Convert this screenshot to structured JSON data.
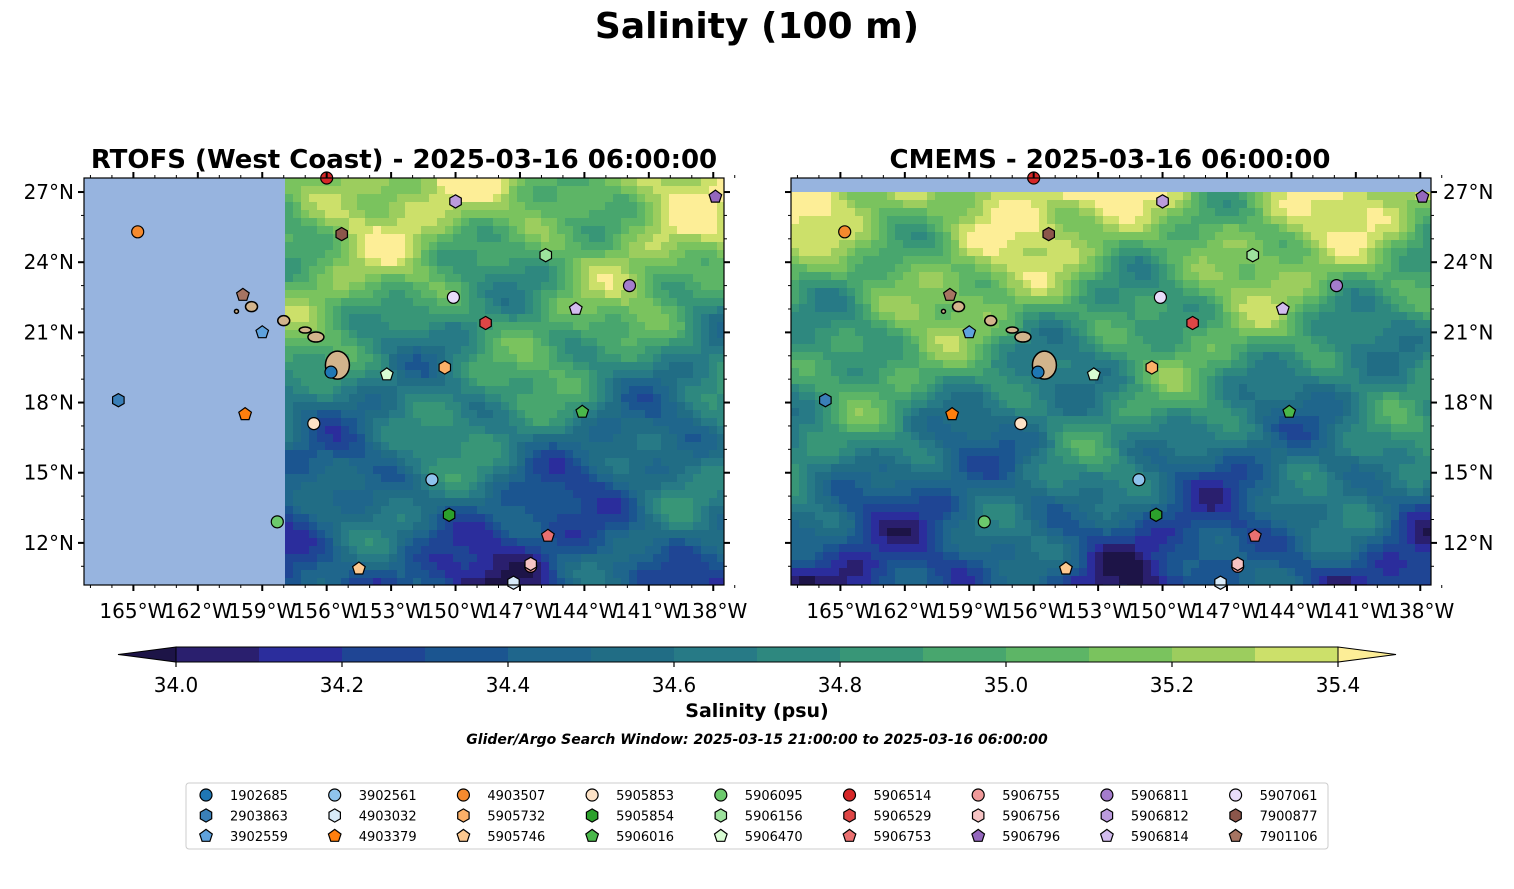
{
  "title": "Salinity (100 m)",
  "panels": [
    {
      "title": "RTOFS (West Coast) - 2025-03-16 06:00:00",
      "side": "left"
    },
    {
      "title": "CMEMS - 2025-03-16 06:00:00",
      "side": "right"
    }
  ],
  "colorbar": {
    "label": "Salinity (psu)",
    "ticks": [
      "34.0",
      "34.2",
      "34.4",
      "34.6",
      "34.8",
      "35.0",
      "35.2",
      "35.4"
    ],
    "levels": [
      34.0,
      34.1,
      34.2,
      34.3,
      34.4,
      34.5,
      34.6,
      34.7,
      34.8,
      34.9,
      35.0,
      35.1,
      35.2,
      35.3,
      35.4
    ],
    "colors": [
      "#2a1f6e",
      "#2b2d9c",
      "#1f4594",
      "#1b5590",
      "#1f668c",
      "#216d85",
      "#277a86",
      "#2e887f",
      "#389677",
      "#48a66e",
      "#5db566",
      "#7ac35e",
      "#9ccd5e",
      "#cce06a"
    ],
    "under_color": "#1d1447",
    "over_color": "#fdee97",
    "land_color": "#d2b48c",
    "nodata_color": "#97b4df"
  },
  "search_window": "Glider/Argo Search Window: 2025-03-15 21:00:00 to 2025-03-16 06:00:00",
  "chart_data": {
    "type": "map",
    "x_ticks": [
      "165°W",
      "162°W",
      "159°W",
      "156°W",
      "153°W",
      "150°W",
      "147°W",
      "144°W",
      "141°W",
      "138°W"
    ],
    "y_ticks": [
      "27°N",
      "24°N",
      "21°N",
      "18°N",
      "15°N",
      "12°N"
    ],
    "lon_range": [
      -167.3,
      -137.5
    ],
    "lat_range": [
      10.2,
      27.6
    ],
    "legend": [
      {
        "id": "1902685",
        "marker": "circle",
        "color": "#1f77b4"
      },
      {
        "id": "2903863",
        "marker": "hexagon",
        "color": "#3a7fb8"
      },
      {
        "id": "3902559",
        "marker": "pentagon",
        "color": "#5fa2dd"
      },
      {
        "id": "3902561",
        "marker": "circle",
        "color": "#8fc3ec"
      },
      {
        "id": "4903032",
        "marker": "hexagon",
        "color": "#d7eaf8"
      },
      {
        "id": "4903379",
        "marker": "pentagon",
        "color": "#ff7f0e"
      },
      {
        "id": "4903507",
        "marker": "circle",
        "color": "#f58a2e"
      },
      {
        "id": "5905732",
        "marker": "hexagon",
        "color": "#fbb068"
      },
      {
        "id": "5905746",
        "marker": "pentagon",
        "color": "#fdc990"
      },
      {
        "id": "5905853",
        "marker": "circle",
        "color": "#fde2c6"
      },
      {
        "id": "5905854",
        "marker": "hexagon",
        "color": "#2ca02c"
      },
      {
        "id": "5906016",
        "marker": "pentagon",
        "color": "#4ab84a"
      },
      {
        "id": "5906095",
        "marker": "circle",
        "color": "#6cc96c"
      },
      {
        "id": "5906156",
        "marker": "hexagon",
        "color": "#9de29d"
      },
      {
        "id": "5906470",
        "marker": "pentagon",
        "color": "#d8fcd3"
      },
      {
        "id": "5906514",
        "marker": "circle",
        "color": "#d62728"
      },
      {
        "id": "5906529",
        "marker": "hexagon",
        "color": "#de4646"
      },
      {
        "id": "5906753",
        "marker": "pentagon",
        "color": "#ea7070"
      },
      {
        "id": "5906755",
        "marker": "circle",
        "color": "#f09a9a"
      },
      {
        "id": "5906756",
        "marker": "hexagon",
        "color": "#f6c4c4"
      },
      {
        "id": "5906796",
        "marker": "pentagon",
        "color": "#9467bd"
      },
      {
        "id": "5906811",
        "marker": "circle",
        "color": "#a47ccc"
      },
      {
        "id": "5906812",
        "marker": "hexagon",
        "color": "#bb9bdd"
      },
      {
        "id": "5906814",
        "marker": "pentagon",
        "color": "#d2bcee"
      },
      {
        "id": "5907061",
        "marker": "circle",
        "color": "#e8dcfa"
      },
      {
        "id": "7900877",
        "marker": "hexagon",
        "color": "#8c564b"
      },
      {
        "id": "7901106",
        "marker": "pentagon",
        "color": "#a67462"
      }
    ],
    "points": [
      {
        "id": "1902685",
        "lon": -155.8,
        "lat": 19.3
      },
      {
        "id": "2903863",
        "lon": -165.7,
        "lat": 18.1
      },
      {
        "id": "3902559",
        "lon": -159.0,
        "lat": 21.0
      },
      {
        "id": "3902561",
        "lon": -151.1,
        "lat": 14.7
      },
      {
        "id": "4903032",
        "lon": -147.3,
        "lat": 10.3
      },
      {
        "id": "4903379",
        "lon": -159.8,
        "lat": 17.5
      },
      {
        "id": "4903507",
        "lon": -164.8,
        "lat": 25.3
      },
      {
        "id": "5905732",
        "lon": -150.5,
        "lat": 19.5
      },
      {
        "id": "5905746",
        "lon": -154.5,
        "lat": 10.9
      },
      {
        "id": "5905853",
        "lon": -156.6,
        "lat": 17.1
      },
      {
        "id": "5905854",
        "lon": -150.3,
        "lat": 13.2
      },
      {
        "id": "5906016",
        "lon": -144.1,
        "lat": 17.6
      },
      {
        "id": "5906095",
        "lon": -158.3,
        "lat": 12.9
      },
      {
        "id": "5906156",
        "lon": -145.8,
        "lat": 24.3
      },
      {
        "id": "5906470",
        "lon": -153.2,
        "lat": 19.2
      },
      {
        "id": "5906514",
        "lon": -156.0,
        "lat": 27.6
      },
      {
        "id": "5906529",
        "lon": -148.6,
        "lat": 21.4
      },
      {
        "id": "5906753",
        "lon": -145.7,
        "lat": 12.3
      },
      {
        "id": "5906755",
        "lon": -146.5,
        "lat": 11.0
      },
      {
        "id": "5906756",
        "lon": -146.5,
        "lat": 11.1
      },
      {
        "id": "5906796",
        "lon": -137.9,
        "lat": 26.8
      },
      {
        "id": "5906811",
        "lon": -141.9,
        "lat": 23.0
      },
      {
        "id": "5906812",
        "lon": -150.0,
        "lat": 26.6
      },
      {
        "id": "5906814",
        "lon": -144.4,
        "lat": 22.0
      },
      {
        "id": "5907061",
        "lon": -150.1,
        "lat": 22.5
      },
      {
        "id": "7900877",
        "lon": -155.3,
        "lat": 25.2
      },
      {
        "id": "7901106",
        "lon": -159.9,
        "lat": 22.6
      }
    ]
  }
}
